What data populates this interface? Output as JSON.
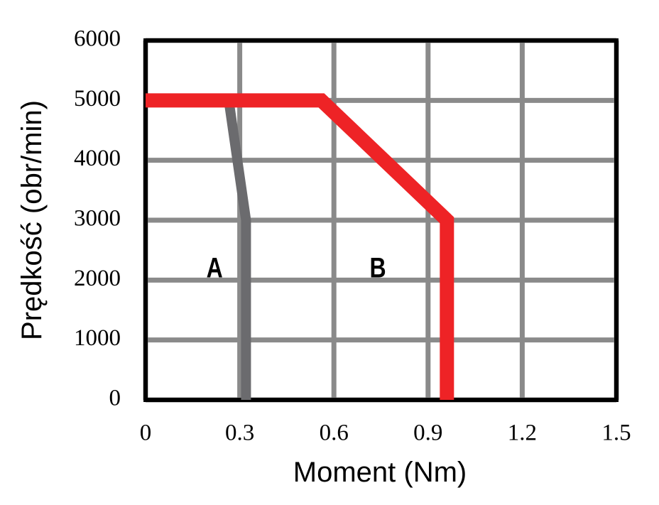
{
  "chart_data": {
    "type": "line",
    "x_label": "Moment (Nm)",
    "y_label": "Prędkość (obr/min)",
    "xlim": [
      0,
      1.5
    ],
    "ylim": [
      0,
      6000
    ],
    "xticks": [
      0,
      0.3,
      0.6,
      0.9,
      1.2,
      1.5
    ],
    "yticks": [
      0,
      1000,
      2000,
      3000,
      4000,
      5000,
      6000
    ],
    "grid": true,
    "series": [
      {
        "name": "A",
        "color": "#6b6b6e",
        "x": [
          0.265,
          0.32,
          0.32
        ],
        "values": [
          5000,
          3000,
          0
        ]
      },
      {
        "name": "B",
        "color": "#ee2326",
        "x": [
          0,
          0.56,
          0.96,
          0.96
        ],
        "values": [
          5000,
          5000,
          3000,
          0
        ]
      }
    ],
    "annotations": [
      {
        "text": "A",
        "x": 0.22,
        "y": 2170
      },
      {
        "text": "B",
        "x": 0.74,
        "y": 2170
      }
    ]
  }
}
